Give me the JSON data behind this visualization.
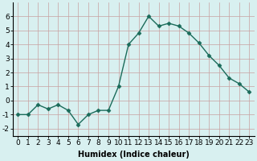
{
  "x": [
    0,
    1,
    2,
    3,
    4,
    5,
    6,
    7,
    8,
    9,
    10,
    11,
    12,
    13,
    14,
    15,
    16,
    17,
    18,
    19,
    20,
    21,
    22,
    23
  ],
  "y": [
    -1.0,
    -1.0,
    -0.3,
    -0.6,
    -0.3,
    -0.7,
    -1.7,
    -1.0,
    -0.7,
    -0.7,
    1.0,
    4.0,
    4.8,
    6.0,
    5.3,
    5.5,
    5.3,
    4.8,
    4.1,
    3.2,
    2.5,
    1.6,
    1.2,
    0.6
  ],
  "line_color": "#1a6b5a",
  "marker": "D",
  "marker_size": 2.5,
  "background_color": "#d8f0f0",
  "grid_color": "#c8dede",
  "xlabel": "Humidex (Indice chaleur)",
  "ylim": [
    -2.5,
    7.0
  ],
  "xlim": [
    -0.5,
    23.5
  ],
  "yticks": [
    -2,
    -1,
    0,
    1,
    2,
    3,
    4,
    5,
    6
  ],
  "xticks": [
    0,
    1,
    2,
    3,
    4,
    5,
    6,
    7,
    8,
    9,
    10,
    11,
    12,
    13,
    14,
    15,
    16,
    17,
    18,
    19,
    20,
    21,
    22,
    23
  ],
  "xlabel_fontsize": 7,
  "tick_fontsize": 6.5
}
